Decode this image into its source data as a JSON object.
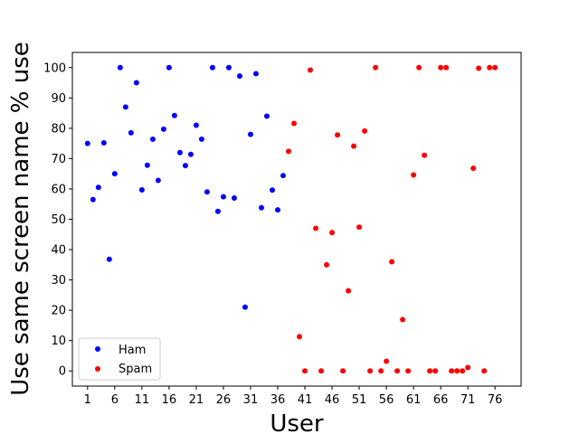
{
  "chart_data": {
    "type": "scatter",
    "title": "",
    "xlabel": "User",
    "ylabel": "Use same screen name % use",
    "xlim": [
      -1.8,
      80.8
    ],
    "ylim": [
      -5,
      105
    ],
    "xticks": [
      1,
      6,
      11,
      16,
      21,
      26,
      31,
      36,
      41,
      46,
      51,
      56,
      61,
      66,
      71,
      76
    ],
    "yticks": [
      0,
      10,
      20,
      30,
      40,
      50,
      60,
      70,
      80,
      90,
      100
    ],
    "grid": false,
    "legend_position": "lower-left",
    "series": [
      {
        "name": "Ham",
        "color": "#0000ff",
        "points": [
          [
            1,
            75
          ],
          [
            2,
            56.5
          ],
          [
            3,
            60.5
          ],
          [
            4,
            75.2
          ],
          [
            5,
            36.8
          ],
          [
            6,
            65
          ],
          [
            7,
            100
          ],
          [
            8,
            87
          ],
          [
            9,
            78.5
          ],
          [
            10,
            95
          ],
          [
            11,
            59.7
          ],
          [
            12,
            67.8
          ],
          [
            13,
            76.4
          ],
          [
            14,
            62.8
          ],
          [
            15,
            79.7
          ],
          [
            16,
            100
          ],
          [
            17,
            84.2
          ],
          [
            18,
            72
          ],
          [
            19,
            67.7
          ],
          [
            20,
            71.4
          ],
          [
            21,
            81
          ],
          [
            22,
            76.4
          ],
          [
            23,
            59
          ],
          [
            24,
            100
          ],
          [
            25,
            52.6
          ],
          [
            26,
            57.4
          ],
          [
            27,
            100
          ],
          [
            28,
            57
          ],
          [
            29,
            97.2
          ],
          [
            30,
            21
          ],
          [
            31,
            78
          ],
          [
            32,
            98
          ],
          [
            33,
            53.8
          ],
          [
            34,
            84
          ],
          [
            35,
            59.6
          ],
          [
            36,
            53.1
          ],
          [
            37,
            64.4
          ]
        ]
      },
      {
        "name": "Spam",
        "color": "#ff0000",
        "points": [
          [
            38,
            72.4
          ],
          [
            39,
            81.6
          ],
          [
            40,
            11.3
          ],
          [
            41,
            0
          ],
          [
            42,
            99.2
          ],
          [
            43,
            47
          ],
          [
            44,
            0
          ],
          [
            45,
            35
          ],
          [
            46,
            45.6
          ],
          [
            47,
            77.8
          ],
          [
            48,
            0
          ],
          [
            49,
            26.4
          ],
          [
            50,
            74.1
          ],
          [
            51,
            47.4
          ],
          [
            52,
            79.1
          ],
          [
            53,
            0
          ],
          [
            54,
            100
          ],
          [
            55,
            0
          ],
          [
            56,
            3.2
          ],
          [
            57,
            36
          ],
          [
            58,
            0
          ],
          [
            59,
            16.9
          ],
          [
            60,
            0
          ],
          [
            61,
            64.6
          ],
          [
            62,
            100
          ],
          [
            63,
            71.1
          ],
          [
            64,
            0
          ],
          [
            65,
            0
          ],
          [
            66,
            100
          ],
          [
            67,
            100
          ],
          [
            68,
            0
          ],
          [
            69,
            0
          ],
          [
            70,
            0
          ],
          [
            71,
            1.1
          ],
          [
            72,
            66.8
          ],
          [
            73,
            99.8
          ],
          [
            74,
            0
          ],
          [
            75,
            100
          ],
          [
            76,
            100
          ]
        ]
      }
    ]
  }
}
